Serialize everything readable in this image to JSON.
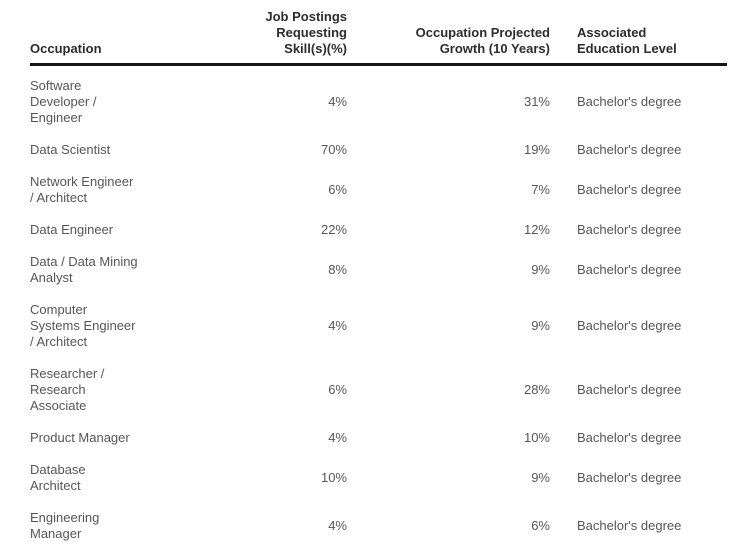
{
  "colors": {
    "background": "#ffffff",
    "header_text": "#2d2d2d",
    "body_text": "#55565a",
    "header_rule": "#161616"
  },
  "table": {
    "header": {
      "occupation": "Occupation",
      "postings": "Job Postings Requesting\nSkill(s)(%)",
      "growth": "Occupation Projected\nGrowth (10 Years)",
      "education": "Associated\nEducation Level"
    },
    "rows": [
      {
        "occupation": "Software\nDeveloper /\nEngineer",
        "postings": "4%",
        "growth": "31%",
        "education": "Bachelor's degree"
      },
      {
        "occupation": "Data Scientist",
        "postings": "70%",
        "growth": "19%",
        "education": "Bachelor's degree"
      },
      {
        "occupation": "Network Engineer\n/ Architect",
        "postings": "6%",
        "growth": "7%",
        "education": "Bachelor's degree"
      },
      {
        "occupation": "Data Engineer",
        "postings": "22%",
        "growth": "12%",
        "education": "Bachelor's degree"
      },
      {
        "occupation": "Data / Data Mining\nAnalyst",
        "postings": "8%",
        "growth": "9%",
        "education": "Bachelor's degree"
      },
      {
        "occupation": "Computer\nSystems Engineer\n/ Architect",
        "postings": "4%",
        "growth": "9%",
        "education": "Bachelor's degree"
      },
      {
        "occupation": "Researcher /\nResearch\nAssociate",
        "postings": "6%",
        "growth": "28%",
        "education": "Bachelor's degree"
      },
      {
        "occupation": "Product Manager",
        "postings": "4%",
        "growth": "10%",
        "education": "Bachelor's degree"
      },
      {
        "occupation": "Database\nArchitect",
        "postings": "10%",
        "growth": "9%",
        "education": "Bachelor's degree"
      },
      {
        "occupation": "Engineering\nManager",
        "postings": "4%",
        "growth": "6%",
        "education": "Bachelor's degree"
      }
    ]
  },
  "chart_data": {
    "type": "table",
    "title": "",
    "columns": [
      "Occupation",
      "Job Postings Requesting Skill(s)(%)",
      "Occupation Projected Growth (10 Years)",
      "Associated Education Level"
    ],
    "rows": [
      [
        "Software Developer / Engineer",
        4,
        31,
        "Bachelor's degree"
      ],
      [
        "Data Scientist",
        70,
        19,
        "Bachelor's degree"
      ],
      [
        "Network Engineer / Architect",
        6,
        7,
        "Bachelor's degree"
      ],
      [
        "Data Engineer",
        22,
        12,
        "Bachelor's degree"
      ],
      [
        "Data / Data Mining Analyst",
        8,
        9,
        "Bachelor's degree"
      ],
      [
        "Computer Systems Engineer / Architect",
        4,
        9,
        "Bachelor's degree"
      ],
      [
        "Researcher / Research Associate",
        6,
        28,
        "Bachelor's degree"
      ],
      [
        "Product Manager",
        4,
        10,
        "Bachelor's degree"
      ],
      [
        "Database Architect",
        10,
        9,
        "Bachelor's degree"
      ],
      [
        "Engineering Manager",
        4,
        6,
        "Bachelor's degree"
      ]
    ],
    "units": {
      "Job Postings Requesting Skill(s)(%)": "%",
      "Occupation Projected Growth (10 Years)": "%"
    }
  }
}
